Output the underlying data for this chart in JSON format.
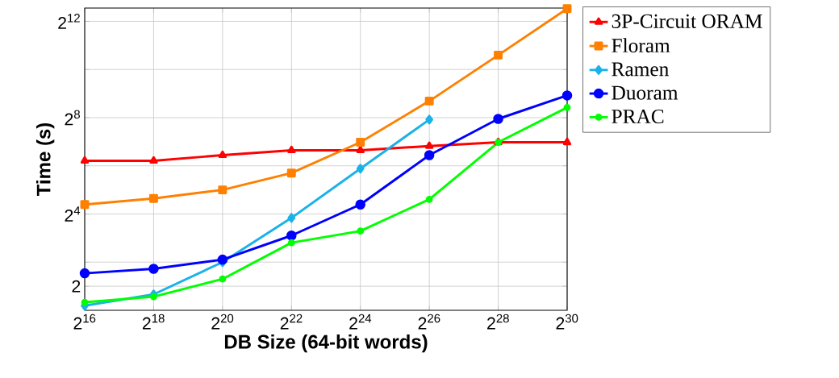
{
  "chart_data": {
    "type": "line",
    "xlabel": "DB Size (64-bit words)",
    "ylabel": "Time (s)",
    "x": [
      65536,
      262144,
      1048576,
      4194304,
      16777216,
      67108864,
      268435456,
      1073741824
    ],
    "series": [
      {
        "name": "3P-Circuit ORAM",
        "color": "#ff0000",
        "marker": "triangle",
        "values": [
          74,
          74,
          87,
          100,
          100,
          113,
          126,
          126
        ]
      },
      {
        "name": "Floram",
        "color": "#ff8000",
        "marker": "square",
        "values": [
          21,
          25,
          32,
          52,
          126,
          413,
          1550,
          5900
        ]
      },
      {
        "name": "Ramen",
        "color": "#1ab2e8",
        "marker": "diamond",
        "values": [
          1.14,
          1.58,
          4,
          14.3,
          59,
          242,
          null,
          null
        ]
      },
      {
        "name": "Duoram",
        "color": "#0000ff",
        "marker": "circle",
        "values": [
          2.9,
          3.3,
          4.3,
          8.6,
          21,
          87,
          247,
          485
        ]
      },
      {
        "name": "PRAC",
        "color": "#00ff00",
        "marker": "circle",
        "values": [
          1.26,
          1.48,
          2.46,
          7,
          9.8,
          24.4,
          126,
          343
        ]
      }
    ],
    "log": "xy",
    "xlim": [
      65536,
      1073741824
    ],
    "ylim": [
      1,
      6000
    ],
    "xticks": [
      {
        "value": 65536,
        "label": "2$^{16}$"
      },
      {
        "value": 262144,
        "label": "2$^{18}$"
      },
      {
        "value": 1048576,
        "label": "2$^{20}$"
      },
      {
        "value": 4194304,
        "label": "2$^{22}$"
      },
      {
        "value": 16777216,
        "label": "2$^{24}$"
      },
      {
        "value": 67108864,
        "label": "2$^{26}$"
      },
      {
        "value": 268435456,
        "label": "2$^{28}$"
      },
      {
        "value": 1073741824,
        "label": "2$^{30}$"
      }
    ],
    "yticks": [
      2,
      {
        "value": 4,
        "label": null
      },
      {
        "value": 16,
        "label": "2$^{4}$"
      },
      {
        "value": 64,
        "label": null
      },
      {
        "value": 256,
        "label": "2$^{8}$"
      },
      {
        "value": 1024,
        "label": null
      },
      {
        "value": 4096,
        "label": "2$^{12}$"
      }
    ],
    "grid": true,
    "legend": "right",
    "line_style": "solid"
  }
}
